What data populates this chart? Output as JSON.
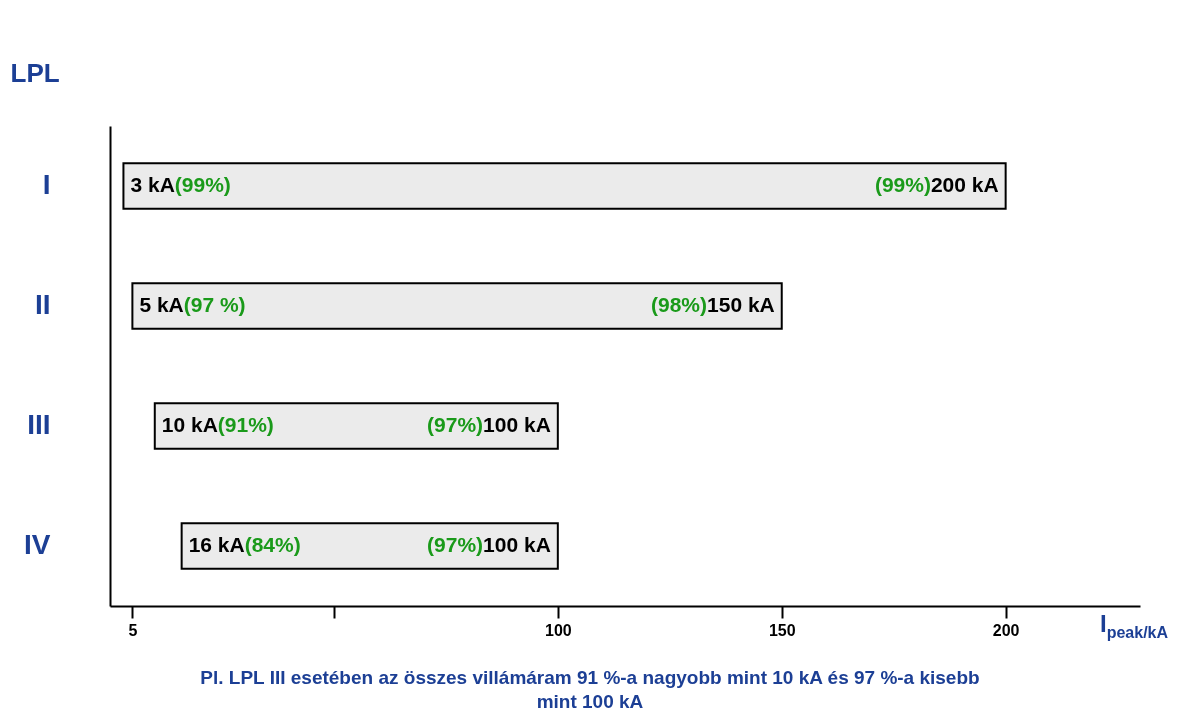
{
  "chart_data": {
    "type": "bar",
    "orientation": "horizontal",
    "ylabel": "LPL",
    "xlabel": "I$_{peak/kA}$",
    "categories": [
      "I",
      "II",
      "III",
      "IV"
    ],
    "base": [
      3,
      5,
      10,
      16
    ],
    "values": [
      197,
      145,
      90,
      84
    ],
    "color": "#ebebeb",
    "xlim": [
      0,
      230
    ],
    "xticks": [
      5,
      {
        "value": 50,
        "label": null
      },
      100,
      150,
      200
    ],
    "annotations": [
      {
        "text": "3 kA(99%)",
        "x": 3,
        "y": "I"
      },
      {
        "text": "(99%)200 kA",
        "x": 200,
        "y": "I"
      },
      {
        "text": "5 kA(97 %)",
        "x": 5,
        "y": "II"
      },
      {
        "text": "(98%)150 kA",
        "x": 150,
        "y": "II"
      },
      {
        "text": "10 kA(91%)",
        "x": 10,
        "y": "III"
      },
      {
        "text": "(97%)100 kA",
        "x": 100,
        "y": "III"
      },
      {
        "text": "16 kA(84%)",
        "x": 16,
        "y": "IV"
      },
      {
        "text": "(97%)100 kA",
        "x": 100,
        "y": "IV"
      },
      "Pl. LPL III esetében az összes villámáram 91 %-a nagyobb mint 10 kA és 97 %-a kisebb mint 100 kA"
    ]
  }
}
